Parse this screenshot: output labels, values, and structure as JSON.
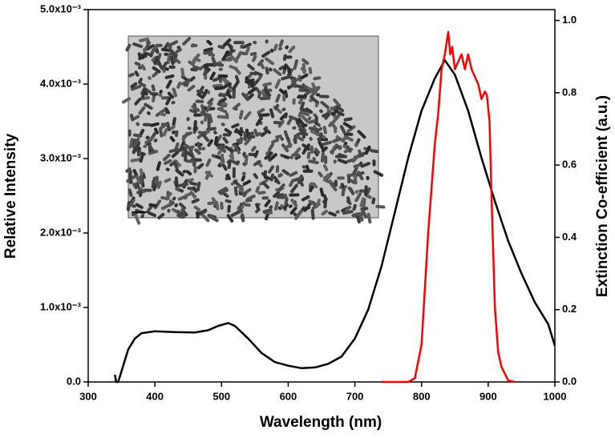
{
  "chart_data": {
    "type": "line",
    "xlabel": "Wavelength (nm)",
    "ylabel": "Relative Intensity",
    "y2label": "Extinction Co-efficient (a.u.)",
    "xlim": [
      300,
      1000
    ],
    "xticks": [
      300,
      400,
      500,
      600,
      700,
      800,
      900,
      1000
    ],
    "ylim": [
      0,
      0.005
    ],
    "yticks": [
      {
        "value": 0,
        "label": "0.0"
      },
      {
        "value": 0.001,
        "label": "1.0x10⁻³"
      },
      {
        "value": 0.002,
        "label": "2.0x10⁻³"
      },
      {
        "value": 0.003,
        "label": "3.0x10⁻³"
      },
      {
        "value": 0.004,
        "label": "4.0x10⁻³"
      },
      {
        "value": 0.005,
        "label": "5.0x10⁻³"
      }
    ],
    "y2lim": [
      0,
      1.03
    ],
    "y2ticks": [
      {
        "value": 0,
        "label": "0.0"
      },
      0.2,
      0.4,
      0.6,
      0.8,
      {
        "value": 1,
        "label": "1.0"
      }
    ],
    "series": [
      {
        "color": "#000000",
        "axis": "y2",
        "x": [
          340,
          342,
          345,
          350,
          360,
          370,
          380,
          400,
          430,
          460,
          480,
          495,
          510,
          520,
          540,
          560,
          580,
          600,
          620,
          640,
          660,
          680,
          700,
          720,
          740,
          760,
          780,
          800,
          820,
          835,
          850,
          870,
          890,
          910,
          930,
          950,
          970,
          990,
          1000
        ],
        "values": [
          0.02,
          0.0,
          0.0,
          0.03,
          0.09,
          0.12,
          0.135,
          0.14,
          0.138,
          0.137,
          0.143,
          0.155,
          0.163,
          0.155,
          0.12,
          0.08,
          0.055,
          0.045,
          0.038,
          0.04,
          0.05,
          0.07,
          0.12,
          0.2,
          0.32,
          0.47,
          0.62,
          0.75,
          0.84,
          0.89,
          0.85,
          0.75,
          0.62,
          0.5,
          0.39,
          0.3,
          0.22,
          0.16,
          0.1
        ]
      },
      {
        "color": "#ff0000",
        "axis": "y",
        "x": [
          740,
          780,
          790,
          800,
          810,
          820,
          825,
          830,
          835,
          840,
          843,
          846,
          850,
          855,
          860,
          865,
          870,
          875,
          880,
          885,
          890,
          895,
          898,
          902,
          905,
          910,
          915,
          920,
          930,
          940
        ],
        "values": [
          0,
          0,
          5e-05,
          0.0005,
          0.002,
          0.0032,
          0.0036,
          0.0042,
          0.0044,
          0.0047,
          0.0044,
          0.0045,
          0.0042,
          0.0043,
          0.0044,
          0.0042,
          0.0044,
          0.0042,
          0.0041,
          0.004,
          0.0038,
          0.0039,
          0.00385,
          0.0035,
          0.0025,
          0.001,
          0.0004,
          0.0002,
          2e-05,
          0
        ]
      }
    ]
  }
}
